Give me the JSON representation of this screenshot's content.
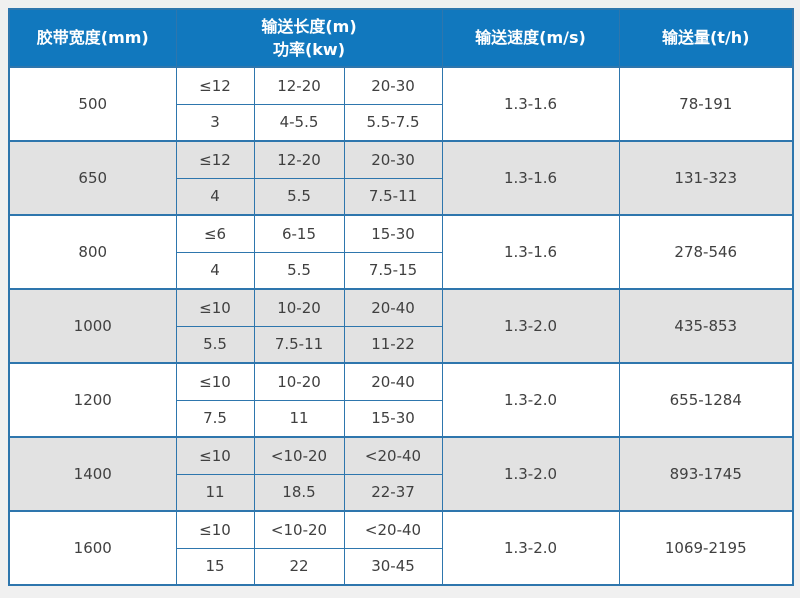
{
  "colors": {
    "page_bg": "#f0f0f0",
    "header_bg": "#1178be",
    "header_text": "#ffffff",
    "border": "#2e76ad",
    "alt_row": "#e2e2e2",
    "row_bg": "#ffffff",
    "text": "#404040"
  },
  "chart_data": {
    "type": "table",
    "title": "",
    "headers": {
      "belt_width": "胶带宽度(mm)",
      "length_line": "输送长度(m)",
      "power_line": "功率(kw)",
      "speed": "输送速度(m/s)",
      "capacity": "输送量(t/h)"
    },
    "columns": [
      "胶带宽度(mm)",
      "输送长度(m) / 功率(kw)",
      "输送速度(m/s)",
      "输送量(t/h)"
    ],
    "groups": [
      {
        "width": "500",
        "lengths": [
          "≤12",
          "12-20",
          "20-30"
        ],
        "powers": [
          "3",
          "4-5.5",
          "5.5-7.5"
        ],
        "speed": "1.3-1.6",
        "capacity": "78-191"
      },
      {
        "width": "650",
        "lengths": [
          "≤12",
          "12-20",
          "20-30"
        ],
        "powers": [
          "4",
          "5.5",
          "7.5-11"
        ],
        "speed": "1.3-1.6",
        "capacity": "131-323"
      },
      {
        "width": "800",
        "lengths": [
          "≤6",
          "6-15",
          "15-30"
        ],
        "powers": [
          "4",
          "5.5",
          "7.5-15"
        ],
        "speed": "1.3-1.6",
        "capacity": "278-546"
      },
      {
        "width": "1000",
        "lengths": [
          "≤10",
          "10-20",
          "20-40"
        ],
        "powers": [
          "5.5",
          "7.5-11",
          "11-22"
        ],
        "speed": "1.3-2.0",
        "capacity": "435-853"
      },
      {
        "width": "1200",
        "lengths": [
          "≤10",
          "10-20",
          "20-40"
        ],
        "powers": [
          "7.5",
          "11",
          "15-30"
        ],
        "speed": "1.3-2.0",
        "capacity": "655-1284"
      },
      {
        "width": "1400",
        "lengths": [
          "≤10",
          "<10-20",
          "<20-40"
        ],
        "powers": [
          "11",
          "18.5",
          "22-37"
        ],
        "speed": "1.3-2.0",
        "capacity": "893-1745"
      },
      {
        "width": "1600",
        "lengths": [
          "≤10",
          "<10-20",
          "<20-40"
        ],
        "powers": [
          "15",
          "22",
          "30-45"
        ],
        "speed": "1.3-2.0",
        "capacity": "1069-2195"
      }
    ]
  }
}
